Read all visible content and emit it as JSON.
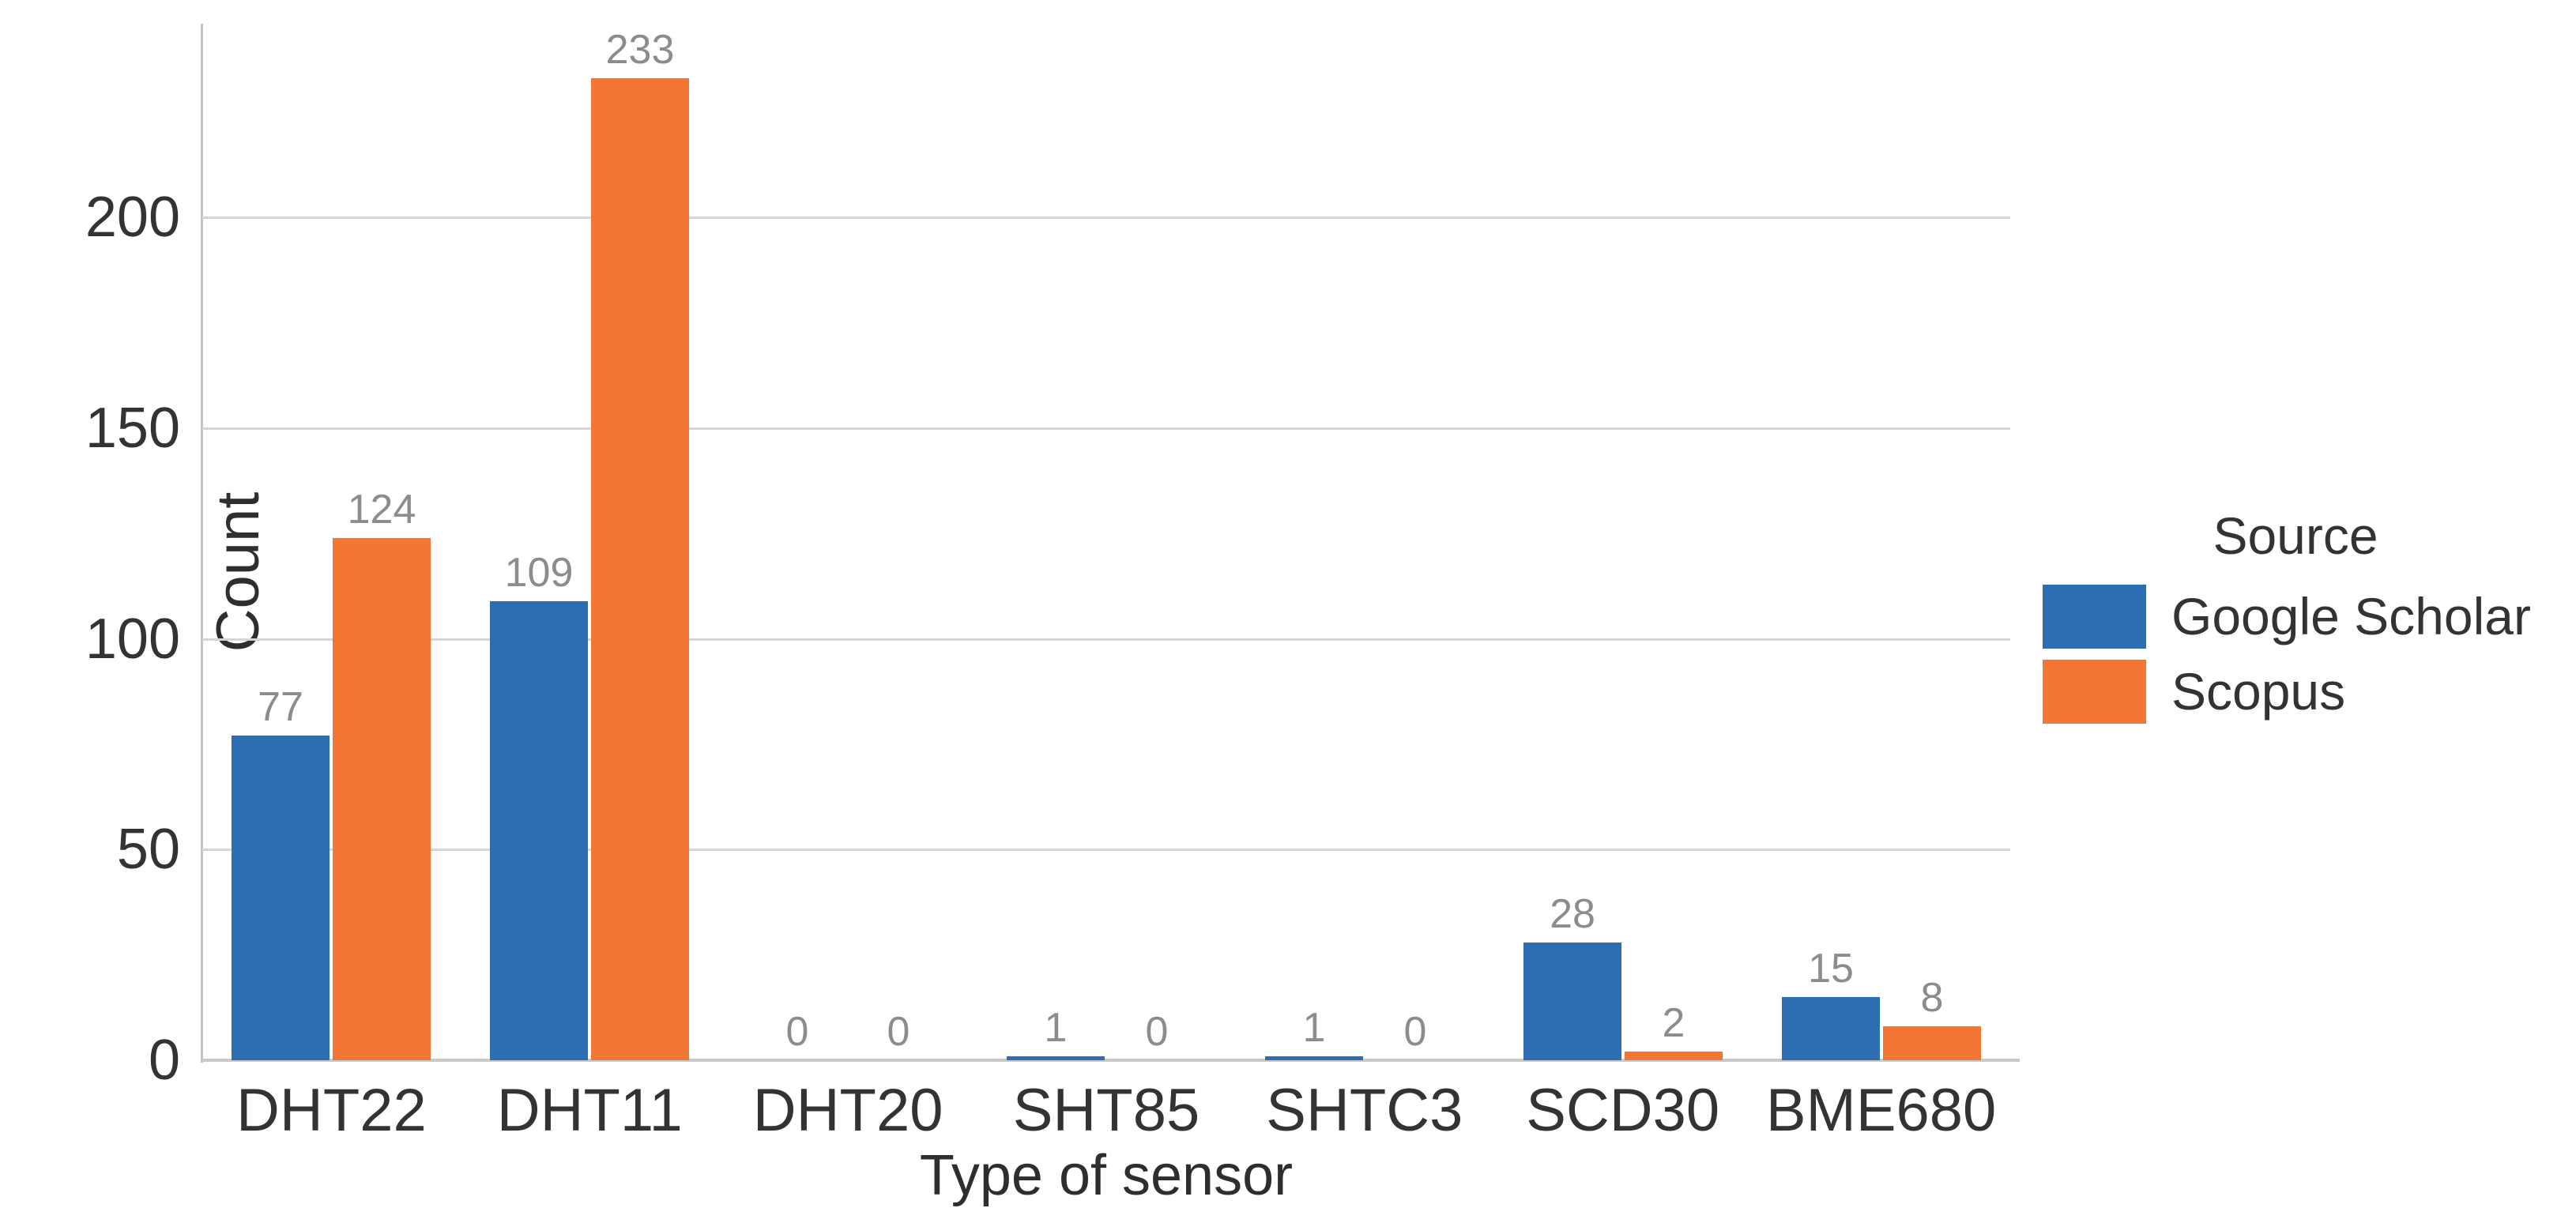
{
  "chart_data": {
    "type": "bar",
    "title": "",
    "xlabel": "Type of sensor",
    "ylabel": "Count",
    "categories": [
      "DHT22",
      "DHT11",
      "DHT20",
      "SHT85",
      "SHTC3",
      "SCD30",
      "BME680"
    ],
    "series": [
      {
        "name": "Google Scholar",
        "color": "#2d6db4",
        "values": [
          77,
          109,
          0,
          1,
          1,
          28,
          15
        ]
      },
      {
        "name": "Scopus",
        "color": "#f47634",
        "values": [
          124,
          233,
          0,
          0,
          0,
          2,
          8
        ]
      }
    ],
    "yticks": [
      0,
      50,
      100,
      150,
      200
    ],
    "ylim": [
      0,
      246
    ],
    "grid": "horizontal",
    "bar_value_labels": true,
    "legend": {
      "title": "Source",
      "position": "right"
    }
  },
  "colors": {
    "grid": "#d6d6d6",
    "spine": "#c4c4c4",
    "axis_line": "#c9c9c9",
    "tick_text": "#333333",
    "axis_title_text": "#2e2e2e",
    "value_label_text": "#8c8c8c",
    "background": "#ffffff"
  }
}
